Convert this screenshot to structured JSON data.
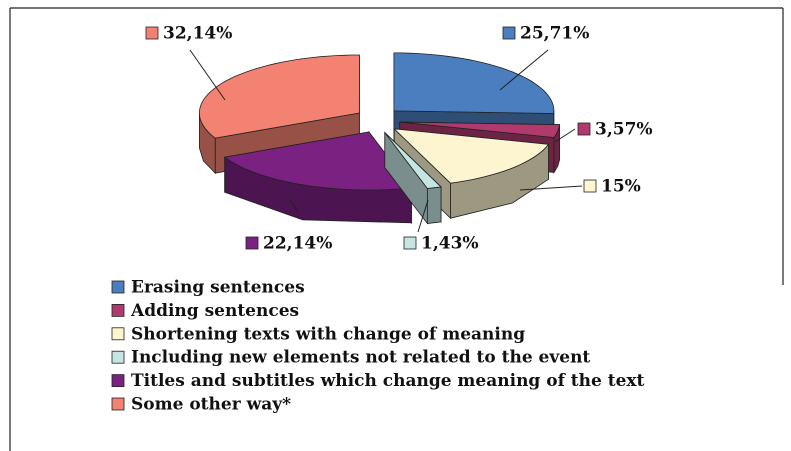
{
  "chart_data": {
    "type": "pie",
    "categories": [
      "Erasing sentences",
      "Adding sentences",
      "Shortening texts with change of meaning",
      "Including new elements not related to the event",
      "Titles and subtitles which change meaning of the text",
      "Some other way*"
    ],
    "values": [
      25.71,
      3.57,
      15,
      1.43,
      22.14,
      32.14
    ],
    "value_labels": [
      "25,71%",
      "3,57%",
      "15%",
      "1,43%",
      "22,14%",
      "32,14%"
    ],
    "colors": [
      "#4a7ebf",
      "#b03a6e",
      "#fdf5d0",
      "#c5e5e3",
      "#7a2182",
      "#f48272"
    ],
    "legend": "bottom"
  }
}
